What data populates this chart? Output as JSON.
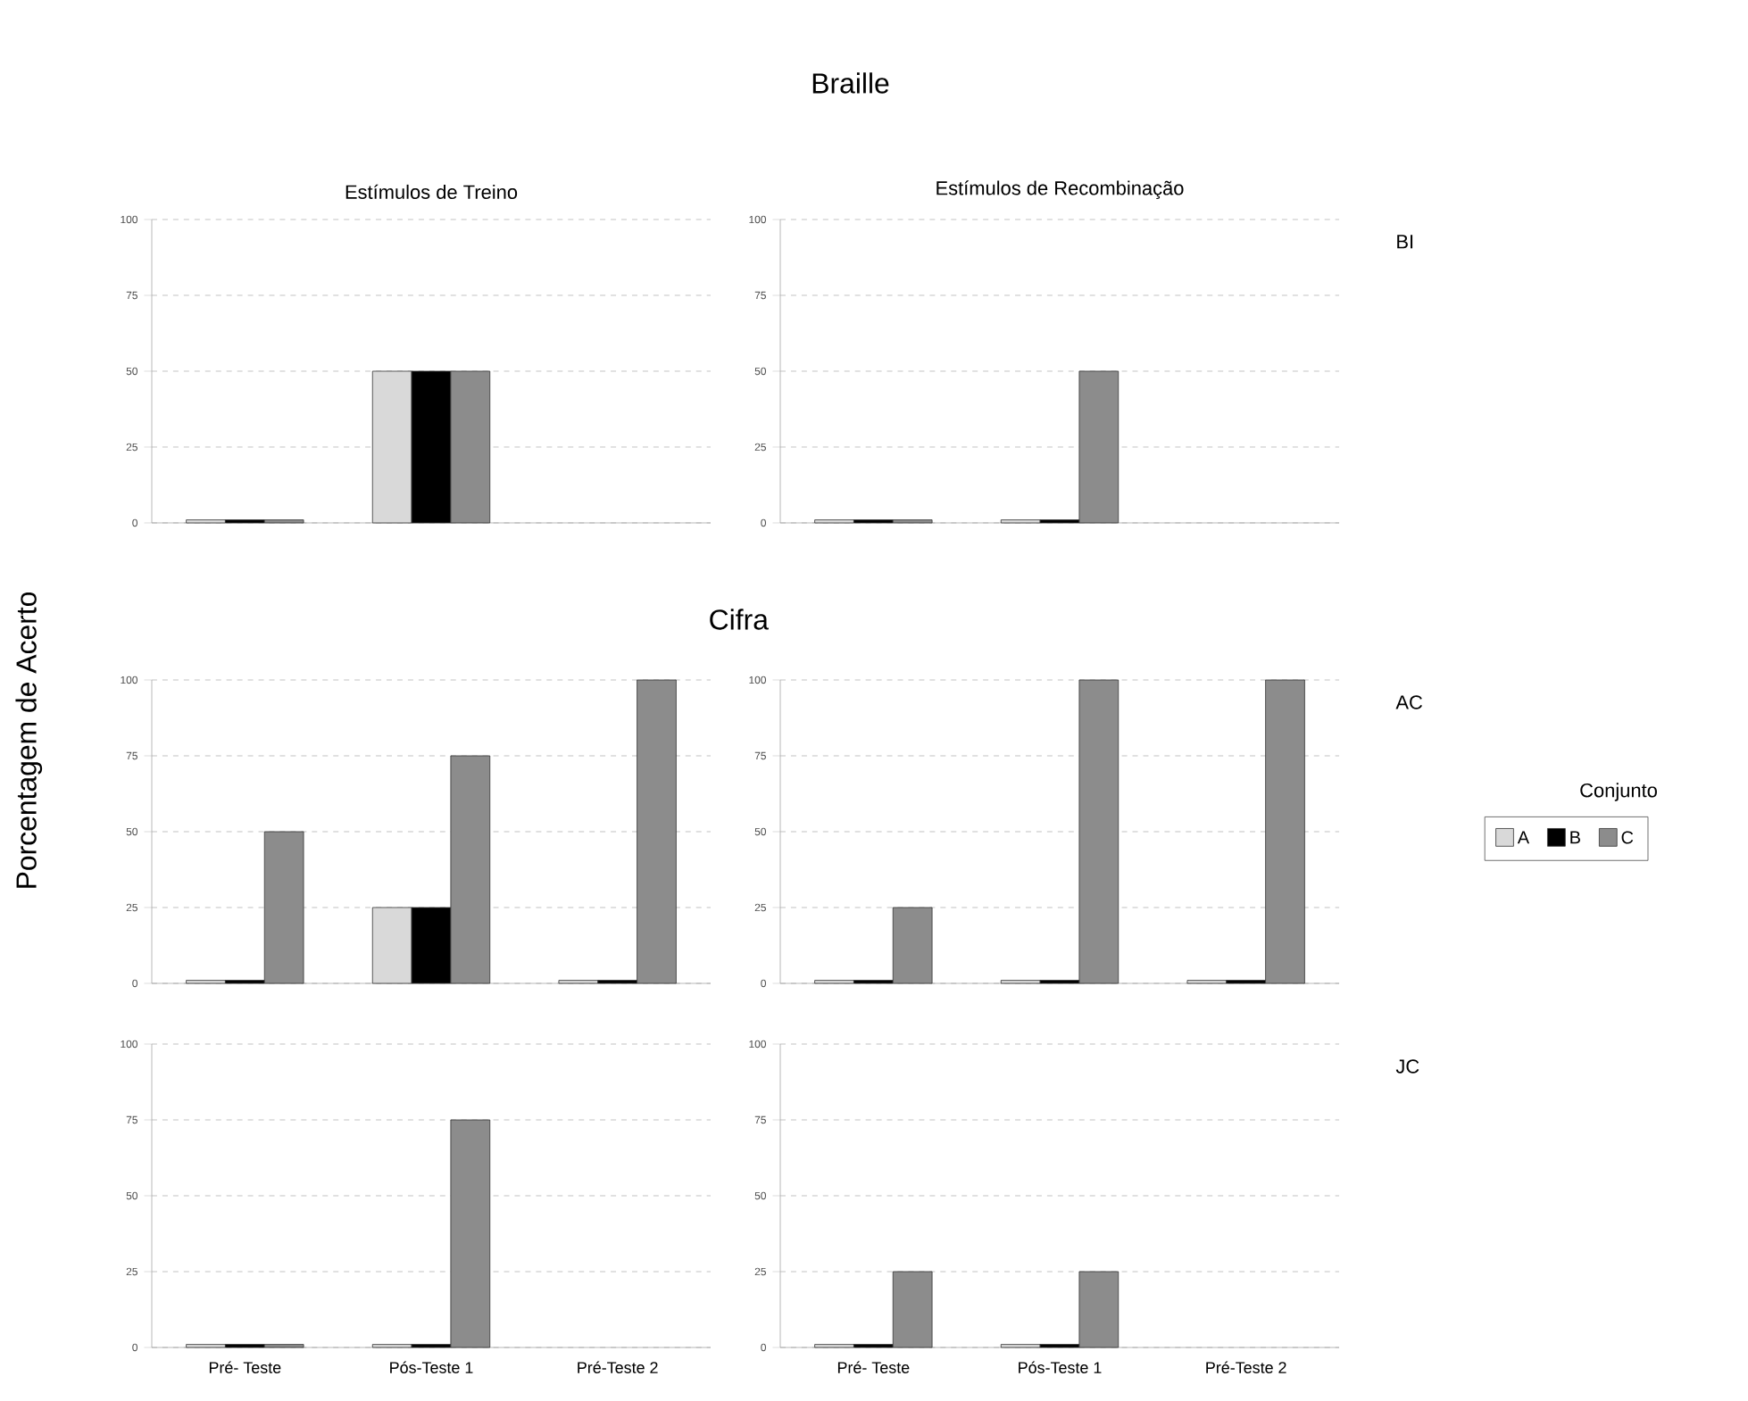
{
  "chart_data": [
    {
      "type": "bar",
      "title": "Estímulos de Treino",
      "annotations": [
        "Braille"
      ],
      "categories": [
        null,
        null,
        null
      ],
      "tick_labels": "y",
      "grid": "y",
      "ylim": [
        0,
        100
      ],
      "yticks": [
        0,
        25,
        50,
        75,
        100
      ],
      "series": [
        {
          "color": "#d9d9d9",
          "values": [
            1,
            50,
            null
          ]
        },
        {
          "color": "#000000",
          "values": [
            1,
            50,
            null
          ]
        },
        {
          "color": "#8c8c8c",
          "values": [
            1,
            50,
            null
          ]
        }
      ]
    },
    {
      "type": "bar",
      "title": "Estímulos de Recombinação",
      "annotations": [
        "BI"
      ],
      "categories": [
        null,
        null,
        null
      ],
      "tick_labels": "y",
      "grid": "y",
      "ylim": [
        0,
        100
      ],
      "yticks": [
        0,
        25,
        50,
        75,
        100
      ],
      "series": [
        {
          "color": "#d9d9d9",
          "values": [
            1,
            1,
            null
          ]
        },
        {
          "color": "#000000",
          "values": [
            1,
            1,
            null
          ]
        },
        {
          "color": "#8c8c8c",
          "values": [
            1,
            50,
            null
          ]
        }
      ]
    },
    {
      "type": "bar",
      "annotations": [
        "Cifra"
      ],
      "ylabel": "Porcentagem de Acerto",
      "categories": [
        null,
        null,
        null
      ],
      "tick_labels": "y",
      "grid": "y",
      "ylim": [
        0,
        100
      ],
      "yticks": [
        0,
        25,
        50,
        75,
        100
      ],
      "series": [
        {
          "color": "#d9d9d9",
          "values": [
            1,
            25,
            1
          ]
        },
        {
          "color": "#000000",
          "values": [
            1,
            25,
            1
          ]
        },
        {
          "color": "#8c8c8c",
          "values": [
            50,
            75,
            100
          ]
        }
      ]
    },
    {
      "type": "bar",
      "annotations": [
        "AC"
      ],
      "legend_title": "Conjunto",
      "legend": "right",
      "categories": [
        null,
        null,
        null
      ],
      "tick_labels": "y",
      "grid": "y",
      "ylim": [
        0,
        100
      ],
      "yticks": [
        0,
        25,
        50,
        75,
        100
      ],
      "series": [
        {
          "name": "A",
          "color": "#d9d9d9",
          "values": [
            1,
            1,
            1
          ]
        },
        {
          "name": "B",
          "color": "#000000",
          "values": [
            1,
            1,
            1
          ]
        },
        {
          "name": "C",
          "color": "#8c8c8c",
          "values": [
            25,
            100,
            100
          ]
        }
      ]
    },
    {
      "type": "bar",
      "categories": [
        "Pré- Teste",
        "Pós-Teste 1",
        "Pré-Teste 2"
      ],
      "grid": "y",
      "ylim": [
        0,
        100
      ],
      "yticks": [
        0,
        25,
        50,
        75,
        100
      ],
      "series": [
        {
          "color": "#d9d9d9",
          "values": [
            1,
            1,
            null
          ]
        },
        {
          "color": "#000000",
          "values": [
            1,
            1,
            null
          ]
        },
        {
          "color": "#8c8c8c",
          "values": [
            1,
            75,
            null
          ]
        }
      ]
    },
    {
      "type": "bar",
      "annotations": [
        "JC"
      ],
      "categories": [
        "Pré- Teste",
        "Pós-Teste 1",
        "Pré-Teste 2"
      ],
      "grid": "y",
      "ylim": [
        0,
        100
      ],
      "yticks": [
        0,
        25,
        50,
        75,
        100
      ],
      "series": [
        {
          "color": "#d9d9d9",
          "values": [
            1,
            1,
            null
          ]
        },
        {
          "color": "#000000",
          "values": [
            1,
            1,
            null
          ]
        },
        {
          "color": "#8c8c8c",
          "values": [
            25,
            25,
            null
          ]
        }
      ]
    }
  ]
}
